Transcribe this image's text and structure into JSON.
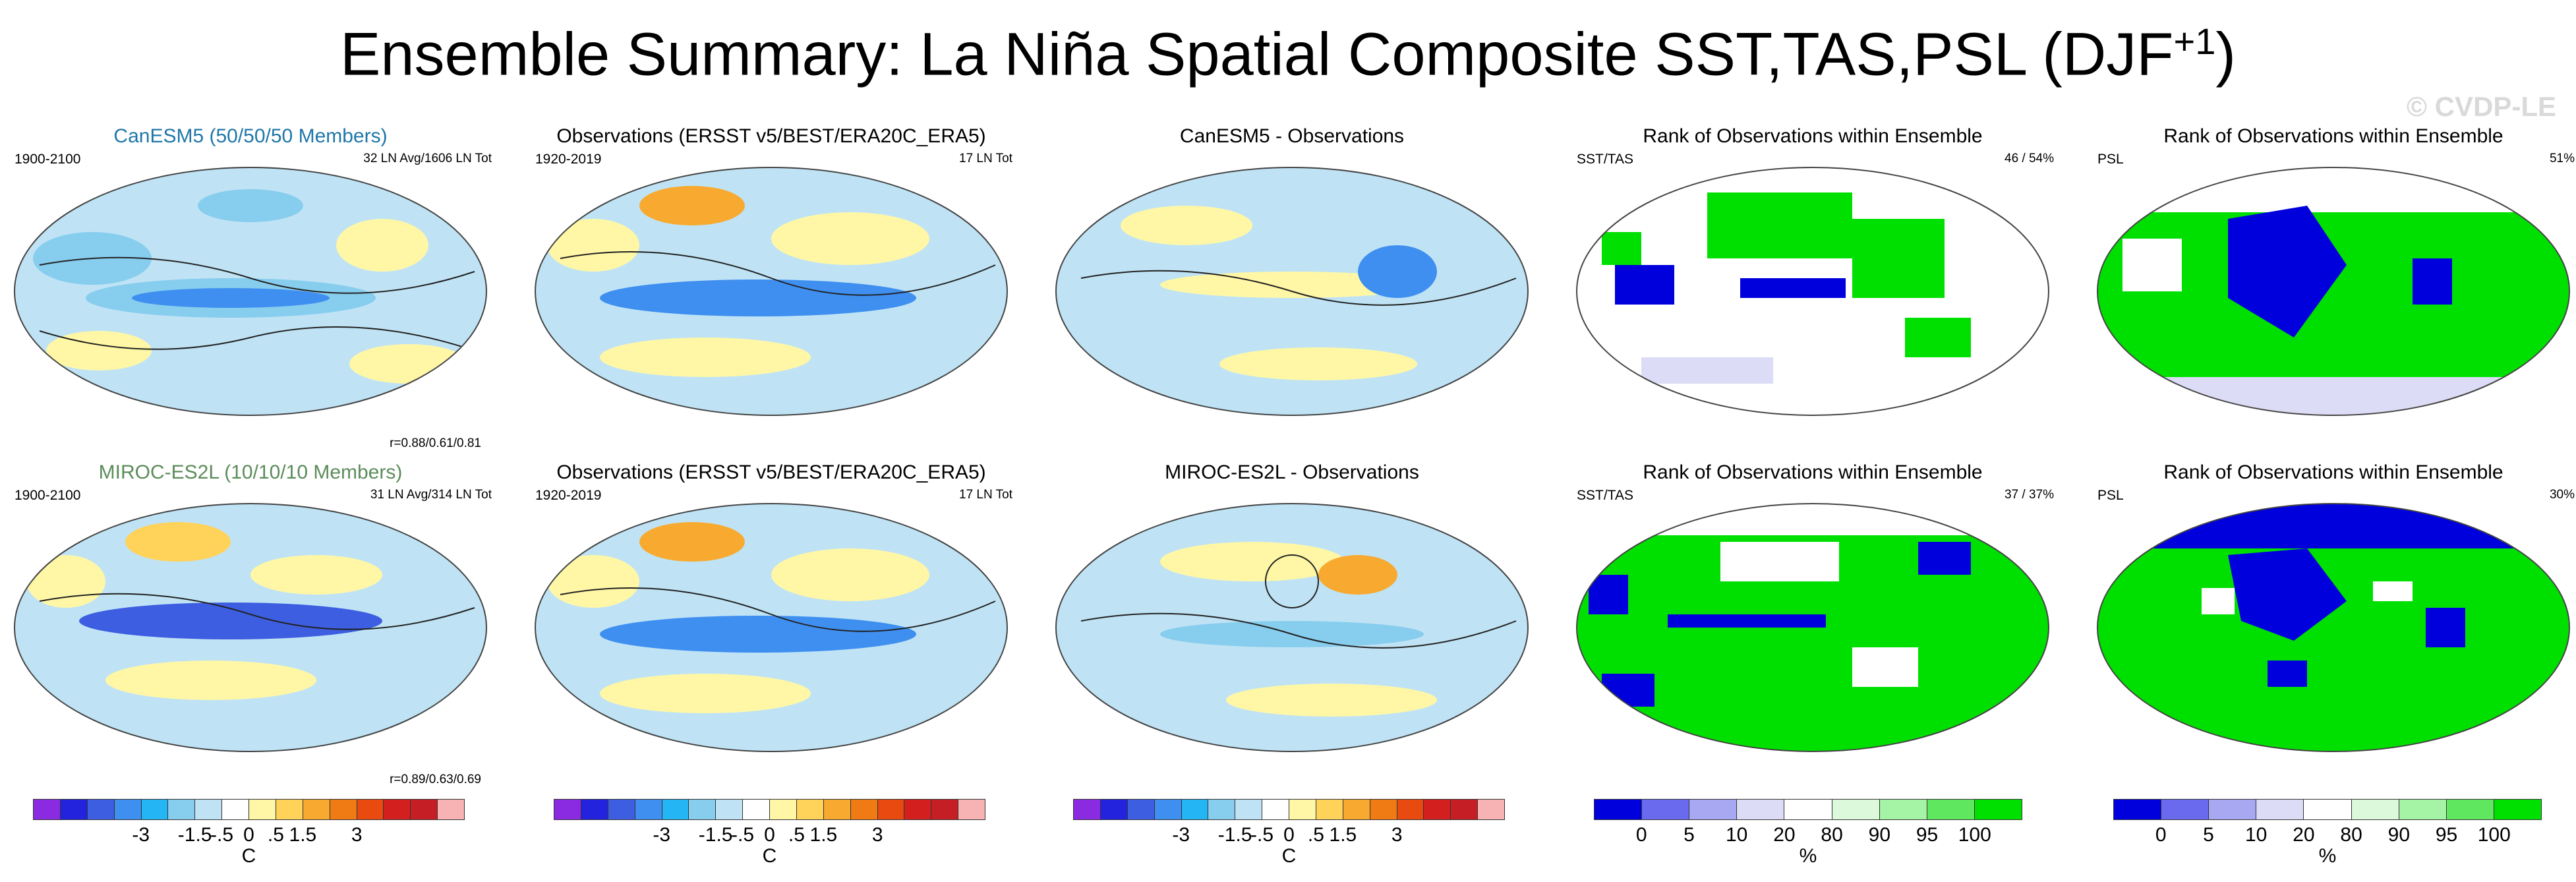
{
  "title": {
    "main": "Ensemble Summary: La Niña Spatial Composite SST,TAS,PSL (DJF",
    "sup": "+1",
    "close": ")"
  },
  "watermark": "© CVDP-LE",
  "panels": {
    "r1c1": {
      "title": "CanESM5 (50/50/50 Members)",
      "left": "1900-2100",
      "right": "32 LN Avg/1606 LN Tot",
      "bottom": "r=0.88/0.61/0.81",
      "title_color": "#1f77a8"
    },
    "r1c2": {
      "title": "Observations (ERSST v5/BEST/ERA20C_ERA5)",
      "left": "1920-2019",
      "right": "17 LN Tot"
    },
    "r1c3": {
      "title": "CanESM5 - Observations"
    },
    "r1c4": {
      "title": "Rank of Observations within Ensemble",
      "left": "SST/TAS",
      "right": "46 /  54%"
    },
    "r1c5": {
      "title": "Rank of Observations within Ensemble",
      "left": "PSL",
      "right": "51%"
    },
    "r2c1": {
      "title": "MIROC-ES2L (10/10/10 Members)",
      "left": "1900-2100",
      "right": "31 LN Avg/314 LN Tot",
      "bottom": "r=0.89/0.63/0.69",
      "title_color": "#5b8c5a"
    },
    "r2c2": {
      "title": "Observations (ERSST v5/BEST/ERA20C_ERA5)",
      "left": "1920-2019",
      "right": "17 LN Tot"
    },
    "r2c3": {
      "title": "MIROC-ES2L - Observations"
    },
    "r2c4": {
      "title": "Rank of Observations within Ensemble",
      "left": "SST/TAS",
      "right": "37 /  37%"
    },
    "r2c5": {
      "title": "Rank of Observations within Ensemble",
      "left": "PSL",
      "right": "30%"
    }
  },
  "colorbar_temp": {
    "colors": [
      "#8a2be2",
      "#2323dd",
      "#3d5ee0",
      "#3f8ff0",
      "#24b6f4",
      "#87cdee",
      "#bfe3f5",
      "#ffffff",
      "#fff7a6",
      "#ffd25a",
      "#f8aa30",
      "#f07b14",
      "#e84a10",
      "#d41f1f",
      "#c51f25",
      "#f7b3b3"
    ],
    "ticks": [
      "-3",
      "-1.5",
      "-.5",
      "0",
      ".5",
      "1.5",
      "3"
    ],
    "unit": "C"
  },
  "colorbar_rank": {
    "colors": [
      "#0000dd",
      "#6a6aee",
      "#a7a7f2",
      "#dcdcf6",
      "#ffffff",
      "#dcf9dc",
      "#a5f3a5",
      "#5fe85f",
      "#00e000"
    ],
    "ticks": [
      "0",
      "5",
      "10",
      "20",
      "80",
      "90",
      "95",
      "100"
    ],
    "unit": "%"
  }
}
